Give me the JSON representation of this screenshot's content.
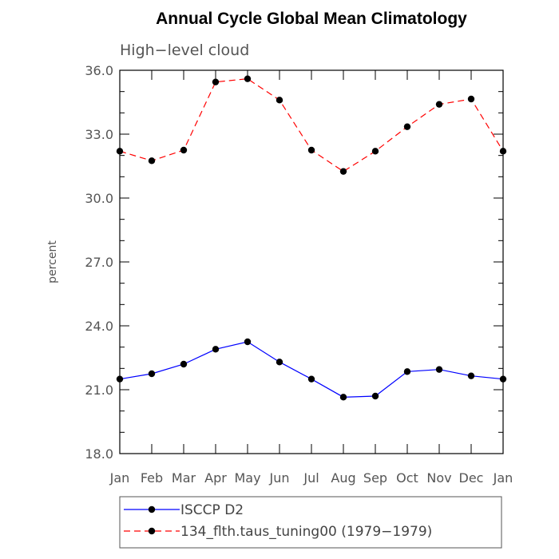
{
  "chart_data": {
    "type": "line",
    "title": "Annual Cycle Global Mean Climatology",
    "subtitle": "High−level cloud",
    "xlabel": "",
    "ylabel": "percent",
    "categories": [
      "Jan",
      "Feb",
      "Mar",
      "Apr",
      "May",
      "Jun",
      "Jul",
      "Aug",
      "Sep",
      "Oct",
      "Nov",
      "Dec",
      "Jan"
    ],
    "ylim": [
      18.0,
      36.0
    ],
    "yticks": [
      "18.0",
      "21.0",
      "24.0",
      "27.0",
      "30.0",
      "33.0",
      "36.0"
    ],
    "grid": false,
    "legend_position": "bottom",
    "series": [
      {
        "name": "ISCCP D2",
        "color": "#0000ff",
        "dash": "solid",
        "values": [
          21.5,
          21.75,
          22.2,
          22.9,
          23.25,
          22.3,
          21.5,
          20.65,
          20.7,
          21.85,
          21.95,
          21.65,
          21.5
        ]
      },
      {
        "name": "134_flth.taus_tuning00 (1979−1979)",
        "color": "#ff0000",
        "dash": "dashed",
        "values": [
          32.2,
          31.75,
          32.25,
          35.45,
          35.6,
          34.6,
          32.25,
          31.25,
          32.2,
          33.35,
          34.4,
          34.65,
          32.2
        ]
      }
    ]
  }
}
